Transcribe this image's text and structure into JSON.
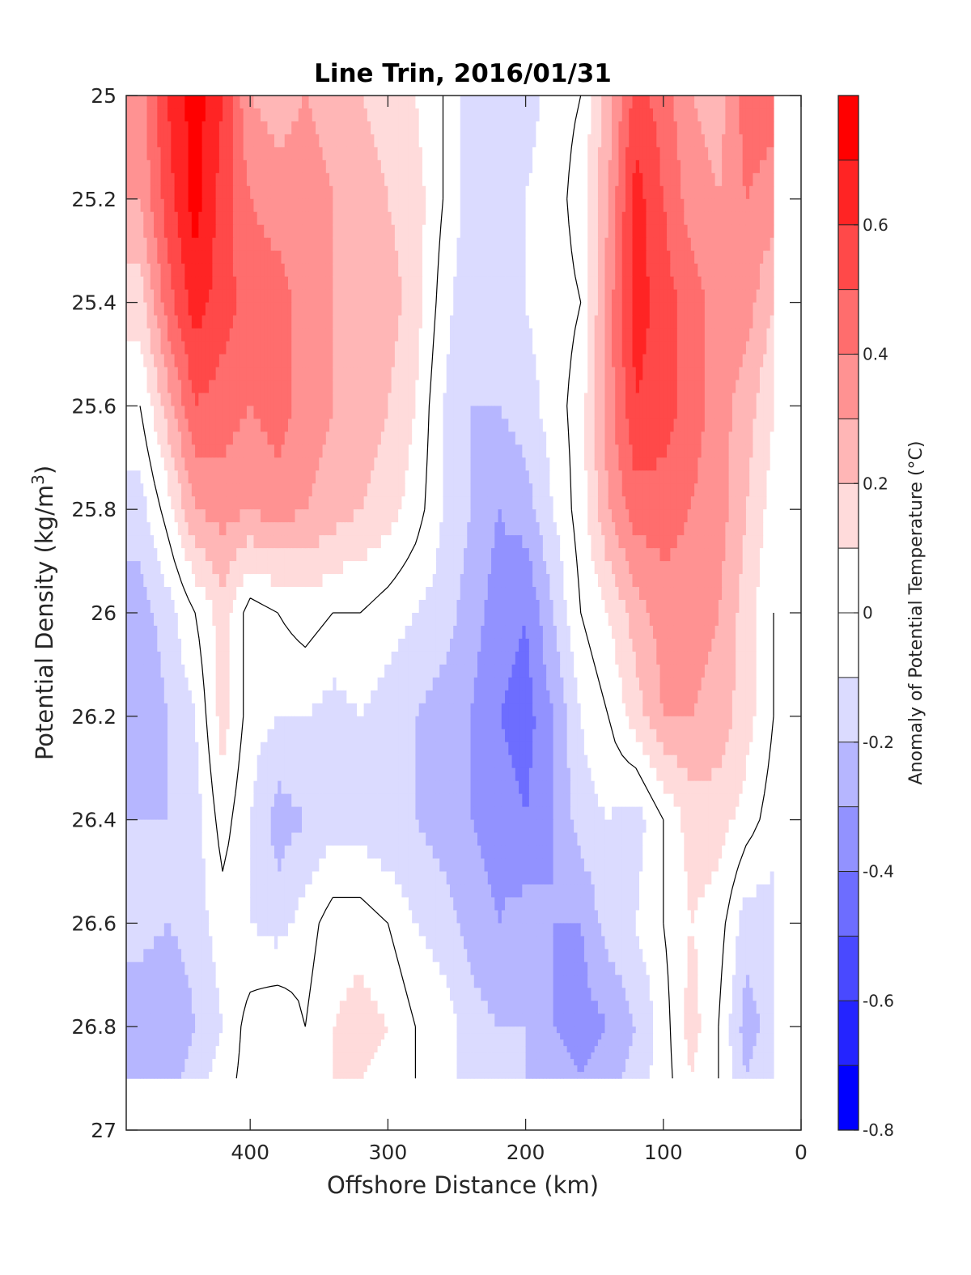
{
  "chart_data": {
    "type": "heatmap",
    "subtype": "filled-contour",
    "title": "Line Trin, 2016/01/31",
    "xlabel": "Offshore Distance (km)",
    "ylabel": "Potential Density (kg/m",
    "ylabel_sup": "3",
    "ylabel_close": ")",
    "xlim": [
      490,
      0
    ],
    "ylim": [
      25,
      27
    ],
    "x_reversed": true,
    "y_reversed": true,
    "xticks": [
      400,
      300,
      200,
      100,
      0
    ],
    "yticks": [
      25,
      25.2,
      25.4,
      25.6,
      25.8,
      26,
      26.2,
      26.4,
      26.6,
      26.8,
      27
    ],
    "colorbar": {
      "label": "Anomaly of Potential Temperature (°C)",
      "range": [
        -0.8,
        0.8
      ],
      "step": 0.1,
      "ticks": [
        -0.8,
        -0.6,
        -0.4,
        -0.2,
        0,
        0.2,
        0.4,
        0.6
      ],
      "tick_labels": [
        "-0.8",
        "-0.6",
        "-0.4",
        "-0.2",
        "0",
        "0.2",
        "0.4",
        "0.6"
      ],
      "negative_color": "#0000ff",
      "positive_color": "#ff0000",
      "zero_color": "#ffffff"
    },
    "x": [
      480,
      460,
      440,
      420,
      400,
      380,
      360,
      340,
      320,
      300,
      280,
      260,
      240,
      220,
      200,
      180,
      160,
      140,
      120,
      100,
      80,
      60,
      40,
      20
    ],
    "y": [
      25.0,
      25.2,
      25.4,
      25.6,
      25.8,
      26.0,
      26.2,
      26.4,
      26.6,
      26.8,
      26.9
    ],
    "z": [
      [
        0.35,
        0.6,
        0.75,
        0.6,
        0.3,
        0.25,
        0.3,
        0.25,
        0.2,
        0.15,
        0.1,
        0.0,
        -0.15,
        -0.1,
        -0.15,
        -0.05,
        0.0,
        0.25,
        0.55,
        0.45,
        0.3,
        0.25,
        0.45,
        0.45
      ],
      [
        0.3,
        0.55,
        0.75,
        0.55,
        0.4,
        0.35,
        0.35,
        0.3,
        0.25,
        0.2,
        0.15,
        0.0,
        -0.15,
        -0.1,
        -0.1,
        -0.05,
        0.05,
        0.3,
        0.65,
        0.5,
        0.35,
        0.3,
        0.4,
        0.35
      ],
      [
        0.15,
        0.45,
        0.65,
        0.55,
        0.45,
        0.45,
        0.35,
        0.3,
        0.25,
        0.25,
        0.15,
        -0.05,
        -0.2,
        -0.15,
        -0.1,
        -0.05,
        0.0,
        0.35,
        0.65,
        0.55,
        0.45,
        0.35,
        0.35,
        0.2
      ],
      [
        0.0,
        0.25,
        0.5,
        0.45,
        0.4,
        0.45,
        0.35,
        0.3,
        0.25,
        0.2,
        0.1,
        -0.1,
        -0.2,
        -0.2,
        -0.15,
        -0.05,
        0.05,
        0.35,
        0.6,
        0.55,
        0.45,
        0.35,
        0.25,
        0.1
      ],
      [
        -0.15,
        0.05,
        0.3,
        0.35,
        0.3,
        0.35,
        0.3,
        0.25,
        0.2,
        0.15,
        0.05,
        -0.1,
        -0.2,
        -0.3,
        -0.25,
        -0.1,
        0.05,
        0.3,
        0.45,
        0.45,
        0.4,
        0.35,
        0.2,
        0.05
      ],
      [
        -0.25,
        -0.15,
        0.0,
        0.15,
        -0.05,
        0.0,
        0.05,
        0.0,
        0.0,
        -0.05,
        -0.1,
        -0.15,
        -0.25,
        -0.35,
        -0.4,
        -0.2,
        0.0,
        0.1,
        0.25,
        0.35,
        0.35,
        0.3,
        0.15,
        0.0
      ],
      [
        -0.3,
        -0.2,
        -0.1,
        0.15,
        -0.05,
        -0.1,
        -0.1,
        -0.15,
        -0.1,
        -0.15,
        -0.2,
        -0.25,
        -0.3,
        -0.4,
        -0.45,
        -0.3,
        -0.1,
        0.0,
        0.15,
        0.3,
        0.3,
        0.25,
        0.15,
        0.0
      ],
      [
        -0.2,
        -0.2,
        -0.15,
        0.05,
        -0.1,
        -0.25,
        -0.2,
        -0.15,
        -0.15,
        -0.2,
        -0.2,
        -0.25,
        -0.3,
        -0.35,
        -0.4,
        -0.3,
        -0.15,
        -0.1,
        -0.15,
        0.0,
        0.15,
        0.15,
        0.05,
        -0.05
      ],
      [
        -0.15,
        -0.2,
        -0.15,
        -0.05,
        -0.1,
        -0.15,
        -0.05,
        0.05,
        0.05,
        0.0,
        -0.1,
        -0.15,
        -0.25,
        -0.3,
        -0.25,
        -0.3,
        -0.3,
        -0.15,
        -0.1,
        0.0,
        0.1,
        0.05,
        -0.15,
        -0.15
      ],
      [
        -0.3,
        -0.3,
        -0.2,
        -0.1,
        0.05,
        0.1,
        0.0,
        0.1,
        0.15,
        0.1,
        0.0,
        -0.05,
        -0.15,
        -0.2,
        -0.2,
        -0.3,
        -0.35,
        -0.3,
        -0.2,
        -0.05,
        0.15,
        0.0,
        -0.25,
        -0.15
      ],
      [
        -0.25,
        -0.25,
        -0.15,
        -0.05,
        0.05,
        0.1,
        0.05,
        0.1,
        0.1,
        0.05,
        0.0,
        -0.05,
        -0.15,
        -0.2,
        -0.2,
        -0.25,
        -0.3,
        -0.25,
        -0.15,
        -0.05,
        0.1,
        0.0,
        -0.2,
        -0.1
      ]
    ]
  }
}
